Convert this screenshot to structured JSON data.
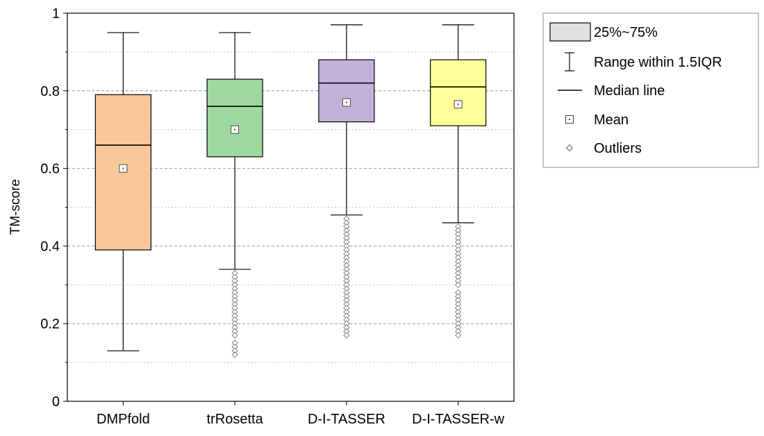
{
  "chart_data": {
    "type": "box",
    "ylabel": "TM-score",
    "ylim": [
      0,
      1
    ],
    "yticks": [
      0,
      0.2,
      0.4,
      0.6,
      0.8,
      1
    ],
    "ytick_labels": [
      "0",
      "0.2",
      "0.4",
      "0.6",
      "0.8",
      "1"
    ],
    "grid": "horizontal dashed",
    "legend_position": "top-right outside plot",
    "legend": [
      {
        "key": "box",
        "label": "25%~75%"
      },
      {
        "key": "whisker",
        "label": "Range within 1.5IQR"
      },
      {
        "key": "median",
        "label": "Median line"
      },
      {
        "key": "mean",
        "label": "Mean"
      },
      {
        "key": "outlier",
        "label": "Outliers"
      }
    ],
    "series": [
      {
        "label": "DMPfold",
        "color": "#FAC898",
        "whisker_low": 0.13,
        "q1": 0.39,
        "median": 0.66,
        "q3": 0.79,
        "whisker_high": 0.95,
        "mean": 0.6,
        "outliers": []
      },
      {
        "label": "trRosetta",
        "color": "#9FD89F",
        "whisker_low": 0.34,
        "q1": 0.63,
        "median": 0.76,
        "q3": 0.83,
        "whisker_high": 0.95,
        "mean": 0.7,
        "outliers": [
          0.33,
          0.32,
          0.31,
          0.3,
          0.29,
          0.28,
          0.27,
          0.26,
          0.25,
          0.24,
          0.23,
          0.22,
          0.21,
          0.2,
          0.19,
          0.18,
          0.17,
          0.15,
          0.14,
          0.13,
          0.12
        ]
      },
      {
        "label": "D-I-TASSER",
        "color": "#C3B1DA",
        "whisker_low": 0.48,
        "q1": 0.72,
        "median": 0.82,
        "q3": 0.88,
        "whisker_high": 0.97,
        "mean": 0.77,
        "outliers": [
          0.47,
          0.46,
          0.45,
          0.44,
          0.43,
          0.42,
          0.41,
          0.4,
          0.39,
          0.38,
          0.37,
          0.36,
          0.35,
          0.34,
          0.33,
          0.32,
          0.31,
          0.3,
          0.29,
          0.28,
          0.27,
          0.26,
          0.25,
          0.24,
          0.23,
          0.22,
          0.21,
          0.2,
          0.19,
          0.18,
          0.17
        ]
      },
      {
        "label": "D-I-TASSER-w",
        "color": "#FFFF99",
        "whisker_low": 0.46,
        "q1": 0.71,
        "median": 0.81,
        "q3": 0.88,
        "whisker_high": 0.97,
        "mean": 0.765,
        "outliers": [
          0.45,
          0.44,
          0.43,
          0.42,
          0.41,
          0.4,
          0.39,
          0.38,
          0.37,
          0.36,
          0.35,
          0.34,
          0.33,
          0.32,
          0.31,
          0.3,
          0.28,
          0.27,
          0.26,
          0.25,
          0.24,
          0.23,
          0.22,
          0.21,
          0.2,
          0.19,
          0.18,
          0.17
        ]
      }
    ]
  }
}
